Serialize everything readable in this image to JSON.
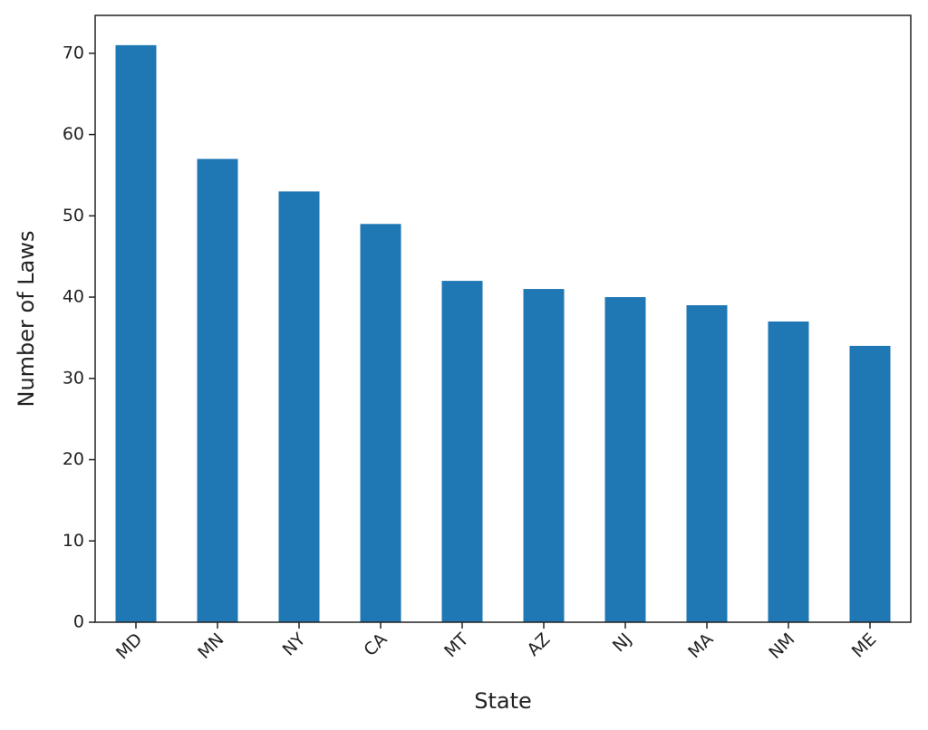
{
  "chart_data": {
    "type": "bar",
    "x_label": "State",
    "y_label": "Number of Laws",
    "categories": [
      "MD",
      "MN",
      "NY",
      "CA",
      "MT",
      "AZ",
      "NJ",
      "MA",
      "NM",
      "ME"
    ],
    "values": [
      71,
      57,
      53,
      49,
      42,
      41,
      40,
      39,
      37,
      34
    ],
    "color": "#1f77b4",
    "ylim": [
      0,
      74.55
    ],
    "yticks": [
      0,
      10,
      20,
      30,
      40,
      50,
      60,
      70
    ],
    "grid": false
  }
}
